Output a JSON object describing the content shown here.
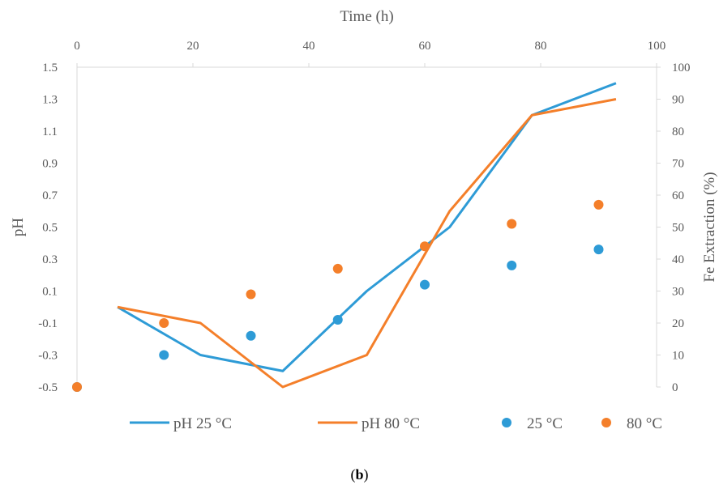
{
  "caption": {
    "open": "(",
    "letter": "b",
    "close": ")"
  },
  "chart_data": {
    "type": "line",
    "xlabel": "Time (h)",
    "ylabel": "pH",
    "y2label": "Fe Extraction (%)",
    "xlim": [
      0,
      100
    ],
    "ylim": [
      -0.5,
      1.5
    ],
    "y2lim": [
      0,
      100
    ],
    "x_ticks": [
      "0",
      "20",
      "40",
      "60",
      "80",
      "100"
    ],
    "y_ticks": [
      "-0.5",
      "-0.3",
      "-0.1",
      "0.1",
      "0.3",
      "0.5",
      "0.7",
      "0.9",
      "1.1",
      "1.3",
      "1.5"
    ],
    "y2_ticks": [
      "0",
      "10",
      "20",
      "30",
      "40",
      "50",
      "60",
      "70",
      "80",
      "90",
      "100"
    ],
    "grid": false,
    "legend_position": "bottom",
    "series": [
      {
        "name": "pH 25 °C",
        "kind": "line",
        "axis": "left",
        "color": "#2E9BD6",
        "x": [
          7,
          21.3,
          35.5,
          50,
          64.3,
          78.5,
          93
        ],
        "y": [
          0.0,
          -0.3,
          -0.4,
          0.1,
          0.5,
          1.2,
          1.4
        ]
      },
      {
        "name": "pH 80 °C",
        "kind": "line",
        "axis": "left",
        "color": "#F47F2A",
        "x": [
          7,
          21.3,
          35.5,
          50,
          64.3,
          78.5,
          93
        ],
        "y": [
          0.0,
          -0.1,
          -0.5,
          -0.3,
          0.6,
          1.2,
          1.3
        ]
      },
      {
        "name": "25 °C",
        "kind": "scatter",
        "axis": "right",
        "color": "#2E9BD6",
        "x": [
          0,
          15,
          30,
          45,
          60,
          75,
          90
        ],
        "y": [
          0,
          10,
          16,
          21,
          32,
          38,
          43
        ]
      },
      {
        "name": "80 °C",
        "kind": "scatter",
        "axis": "right",
        "color": "#F47F2A",
        "x": [
          0,
          15,
          30,
          45,
          60,
          75,
          90
        ],
        "y": [
          0,
          20,
          29,
          37,
          44,
          51,
          57
        ]
      }
    ]
  }
}
